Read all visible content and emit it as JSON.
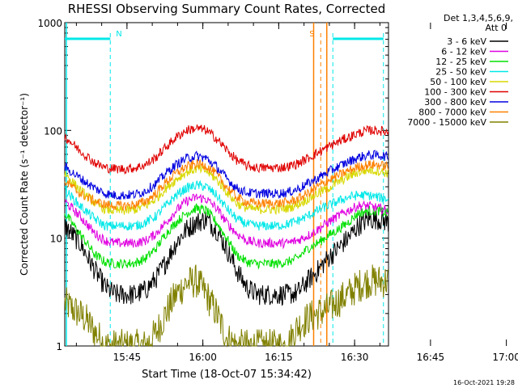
{
  "chart_data": {
    "type": "line",
    "title": "RHESSI Observing Summary Count Rates, Corrected",
    "xlabel": "Start Time (18-Oct-07 15:34:42)",
    "ylabel": "Corrected Count Rate (s⁻¹ detector⁻¹)",
    "ylim": [
      1,
      1000
    ],
    "yscale": "log",
    "xlim_minutes": [
      -2,
      62
    ],
    "x_ticks": [
      "15:45",
      "16:00",
      "16:15",
      "16:30",
      "16:45",
      "17:00"
    ],
    "y_ticks": [
      "1",
      "10",
      "100",
      "1000"
    ],
    "detectors": "Det 1,3,4,5,6,9,",
    "attenuator": "Att 0",
    "date_stamp": "16-Oct-2021 19:28",
    "legend_position": "right",
    "grid": false,
    "series": [
      {
        "name": "3 - 6 keV",
        "color": "#000000",
        "values": [
          [
            -2,
            13
          ],
          [
            1,
            9
          ],
          [
            4,
            5
          ],
          [
            6,
            3.5
          ],
          [
            8,
            3
          ],
          [
            10,
            3
          ],
          [
            12,
            3
          ],
          [
            14,
            3.3
          ],
          [
            16,
            4.2
          ],
          [
            18,
            6
          ],
          [
            20,
            9
          ],
          [
            22,
            12
          ],
          [
            24,
            14
          ],
          [
            26,
            15
          ],
          [
            28,
            12
          ],
          [
            30,
            8
          ],
          [
            32,
            5
          ],
          [
            34,
            3.5
          ],
          [
            36,
            3
          ],
          [
            38,
            3
          ],
          [
            40,
            3
          ],
          [
            42,
            3
          ],
          [
            44,
            3.1
          ],
          [
            46,
            4
          ],
          [
            48,
            5
          ],
          [
            50,
            6.5
          ],
          [
            52,
            8
          ],
          [
            54,
            10
          ],
          [
            56,
            13
          ],
          [
            58,
            15
          ],
          [
            60,
            15
          ],
          [
            62,
            14
          ]
        ]
      },
      {
        "name": "6 - 12 keV",
        "color": "#e000e0",
        "values": [
          [
            -2,
            22
          ],
          [
            1,
            16
          ],
          [
            4,
            11
          ],
          [
            6,
            9.5
          ],
          [
            8,
            9
          ],
          [
            10,
            9
          ],
          [
            12,
            9
          ],
          [
            14,
            9.5
          ],
          [
            16,
            11
          ],
          [
            18,
            14
          ],
          [
            20,
            18
          ],
          [
            22,
            22
          ],
          [
            24,
            24
          ],
          [
            26,
            23
          ],
          [
            28,
            19
          ],
          [
            30,
            14
          ],
          [
            32,
            11
          ],
          [
            34,
            9.5
          ],
          [
            36,
            9
          ],
          [
            38,
            9
          ],
          [
            40,
            9
          ],
          [
            42,
            9
          ],
          [
            44,
            9.5
          ],
          [
            46,
            10.5
          ],
          [
            48,
            12
          ],
          [
            50,
            14
          ],
          [
            52,
            16
          ],
          [
            54,
            18
          ],
          [
            56,
            20
          ],
          [
            58,
            20
          ],
          [
            60,
            19
          ],
          [
            62,
            18
          ]
        ]
      },
      {
        "name": "12 - 25 keV",
        "color": "#00e000",
        "values": [
          [
            -2,
            17
          ],
          [
            1,
            11
          ],
          [
            4,
            7
          ],
          [
            6,
            6
          ],
          [
            8,
            5.8
          ],
          [
            10,
            5.8
          ],
          [
            12,
            5.9
          ],
          [
            14,
            6.5
          ],
          [
            16,
            8
          ],
          [
            18,
            11
          ],
          [
            20,
            14
          ],
          [
            22,
            17
          ],
          [
            24,
            19
          ],
          [
            26,
            18
          ],
          [
            28,
            14
          ],
          [
            30,
            10
          ],
          [
            32,
            7
          ],
          [
            34,
            6
          ],
          [
            36,
            5.8
          ],
          [
            38,
            5.8
          ],
          [
            40,
            5.8
          ],
          [
            42,
            6
          ],
          [
            44,
            6.5
          ],
          [
            46,
            8
          ],
          [
            48,
            9
          ],
          [
            50,
            10.5
          ],
          [
            52,
            12
          ],
          [
            54,
            14
          ],
          [
            56,
            17
          ],
          [
            58,
            18
          ],
          [
            60,
            18
          ],
          [
            62,
            17
          ]
        ]
      },
      {
        "name": "25 - 50 keV",
        "color": "#00e8e8",
        "values": [
          [
            -2,
            28
          ],
          [
            1,
            20
          ],
          [
            4,
            15
          ],
          [
            6,
            13
          ],
          [
            8,
            13
          ],
          [
            10,
            13
          ],
          [
            12,
            13
          ],
          [
            14,
            14
          ],
          [
            16,
            16
          ],
          [
            18,
            20
          ],
          [
            20,
            25
          ],
          [
            22,
            29
          ],
          [
            24,
            31
          ],
          [
            26,
            30
          ],
          [
            28,
            25
          ],
          [
            30,
            19
          ],
          [
            32,
            15
          ],
          [
            34,
            13.5
          ],
          [
            36,
            13
          ],
          [
            38,
            13
          ],
          [
            40,
            13
          ],
          [
            42,
            13.5
          ],
          [
            44,
            14.5
          ],
          [
            46,
            16
          ],
          [
            48,
            18
          ],
          [
            50,
            20
          ],
          [
            52,
            22
          ],
          [
            54,
            24
          ],
          [
            56,
            25
          ],
          [
            58,
            25
          ],
          [
            60,
            24
          ],
          [
            62,
            23
          ]
        ]
      },
      {
        "name": "50 - 100 keV",
        "color": "#d8d800",
        "values": [
          [
            -2,
            40
          ],
          [
            1,
            28
          ],
          [
            4,
            21
          ],
          [
            6,
            18.5
          ],
          [
            8,
            18
          ],
          [
            10,
            18
          ],
          [
            12,
            18.5
          ],
          [
            14,
            20
          ],
          [
            16,
            23
          ],
          [
            18,
            29
          ],
          [
            20,
            35
          ],
          [
            22,
            41
          ],
          [
            24,
            44
          ],
          [
            26,
            42
          ],
          [
            28,
            35
          ],
          [
            30,
            27
          ],
          [
            32,
            21
          ],
          [
            34,
            19
          ],
          [
            36,
            18.5
          ],
          [
            38,
            18.5
          ],
          [
            40,
            18.5
          ],
          [
            42,
            19
          ],
          [
            44,
            20.5
          ],
          [
            46,
            23
          ],
          [
            48,
            26
          ],
          [
            50,
            29
          ],
          [
            52,
            33
          ],
          [
            54,
            37
          ],
          [
            56,
            41
          ],
          [
            58,
            43
          ],
          [
            60,
            42
          ],
          [
            62,
            40
          ]
        ]
      },
      {
        "name": "100 - 300 keV",
        "color": "#e00000",
        "values": [
          [
            -2,
            88
          ],
          [
            1,
            65
          ],
          [
            4,
            50
          ],
          [
            6,
            45
          ],
          [
            8,
            44
          ],
          [
            10,
            44
          ],
          [
            12,
            45
          ],
          [
            14,
            48
          ],
          [
            16,
            56
          ],
          [
            18,
            70
          ],
          [
            20,
            86
          ],
          [
            22,
            100
          ],
          [
            24,
            105
          ],
          [
            26,
            100
          ],
          [
            28,
            84
          ],
          [
            30,
            66
          ],
          [
            32,
            53
          ],
          [
            34,
            47
          ],
          [
            36,
            45
          ],
          [
            38,
            45
          ],
          [
            40,
            45
          ],
          [
            42,
            46
          ],
          [
            44,
            49
          ],
          [
            46,
            55
          ],
          [
            48,
            62
          ],
          [
            50,
            70
          ],
          [
            52,
            78
          ],
          [
            54,
            86
          ],
          [
            56,
            94
          ],
          [
            58,
            100
          ],
          [
            60,
            100
          ],
          [
            62,
            96
          ]
        ]
      },
      {
        "name": "300 - 800 keV",
        "color": "#0000e0",
        "values": [
          [
            -2,
            46
          ],
          [
            1,
            36
          ],
          [
            4,
            29
          ],
          [
            6,
            26
          ],
          [
            8,
            25
          ],
          [
            10,
            25
          ],
          [
            12,
            25.5
          ],
          [
            14,
            27.5
          ],
          [
            16,
            32
          ],
          [
            18,
            40
          ],
          [
            20,
            48
          ],
          [
            22,
            55
          ],
          [
            24,
            58
          ],
          [
            26,
            55
          ],
          [
            28,
            46
          ],
          [
            30,
            36
          ],
          [
            32,
            29
          ],
          [
            34,
            26.5
          ],
          [
            36,
            26
          ],
          [
            38,
            26
          ],
          [
            40,
            26
          ],
          [
            42,
            26.5
          ],
          [
            44,
            28.5
          ],
          [
            46,
            32
          ],
          [
            48,
            36
          ],
          [
            50,
            41
          ],
          [
            52,
            46
          ],
          [
            54,
            51
          ],
          [
            56,
            56
          ],
          [
            58,
            59
          ],
          [
            60,
            59
          ],
          [
            62,
            57
          ]
        ]
      },
      {
        "name": "800 - 7000 keV",
        "color": "#ff8000",
        "values": [
          [
            -2,
            34
          ],
          [
            1,
            26
          ],
          [
            4,
            22
          ],
          [
            6,
            20.5
          ],
          [
            8,
            20
          ],
          [
            10,
            20
          ],
          [
            12,
            20.5
          ],
          [
            14,
            22
          ],
          [
            16,
            26
          ],
          [
            18,
            33
          ],
          [
            20,
            40
          ],
          [
            22,
            46
          ],
          [
            24,
            49
          ],
          [
            26,
            47
          ],
          [
            28,
            39
          ],
          [
            30,
            30
          ],
          [
            32,
            24
          ],
          [
            34,
            21.5
          ],
          [
            36,
            21
          ],
          [
            38,
            21
          ],
          [
            40,
            21
          ],
          [
            42,
            21.5
          ],
          [
            44,
            23
          ],
          [
            46,
            26
          ],
          [
            48,
            30
          ],
          [
            50,
            34
          ],
          [
            52,
            38
          ],
          [
            54,
            42
          ],
          [
            56,
            46
          ],
          [
            58,
            48
          ],
          [
            60,
            48
          ],
          [
            62,
            46
          ]
        ]
      },
      {
        "name": "7000 - 15000 keV",
        "color": "#808000",
        "values": [
          [
            -2,
            2.5
          ],
          [
            2,
            1.8
          ],
          [
            6,
            1
          ],
          [
            10,
            1
          ],
          [
            14,
            1
          ],
          [
            16,
            1.3
          ],
          [
            18,
            2
          ],
          [
            20,
            3
          ],
          [
            22,
            3.8
          ],
          [
            24,
            4
          ],
          [
            26,
            3
          ],
          [
            28,
            2
          ],
          [
            30,
            1.2
          ],
          [
            32,
            1
          ],
          [
            36,
            1
          ],
          [
            40,
            1
          ],
          [
            42,
            1
          ],
          [
            44,
            1.5
          ],
          [
            46,
            1.8
          ],
          [
            48,
            2
          ],
          [
            50,
            2.2
          ],
          [
            52,
            2.6
          ],
          [
            54,
            3
          ],
          [
            56,
            3.6
          ],
          [
            58,
            4
          ],
          [
            60,
            4
          ],
          [
            62,
            4
          ]
        ]
      }
    ],
    "annotations": [
      {
        "label": "N",
        "color": "#00e8e8",
        "bars": [
          [
            -2,
            7
          ]
        ],
        "dashed_x": [
          7
        ]
      },
      {
        "label": "S",
        "color": "#ff8000",
        "solid_x": [
          47.2,
          49.8
        ],
        "dashed_x": [
          48.6
        ]
      },
      {
        "label": "",
        "color": "#00e8e8",
        "bars": [
          [
            51,
            61
          ]
        ],
        "dashed_x": [
          51,
          61
        ]
      }
    ]
  }
}
